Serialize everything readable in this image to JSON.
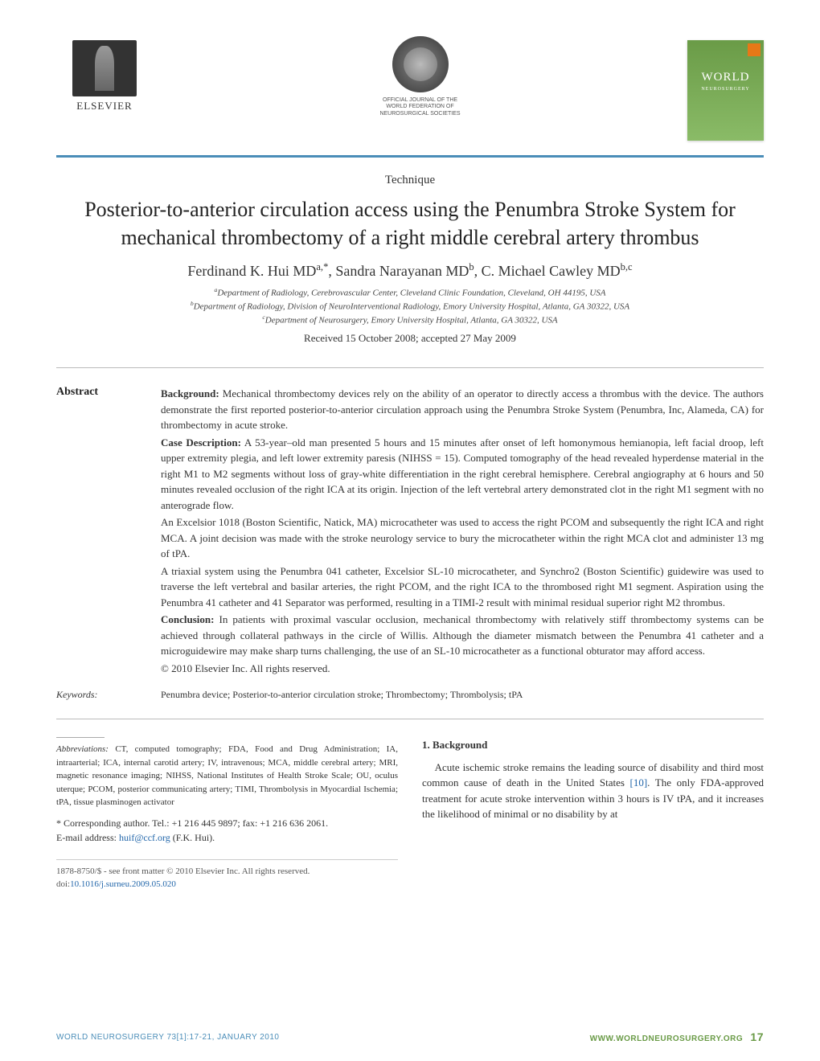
{
  "header": {
    "publisher_name": "ELSEVIER",
    "federation_caption": "OFFICIAL JOURNAL OF THE\nWORLD FEDERATION OF\nNEUROSURGICAL SOCIETIES",
    "journal_cover_title": "WORLD",
    "journal_cover_sub": "NEUROSURGERY"
  },
  "article": {
    "type": "Technique",
    "title": "Posterior-to-anterior circulation access using the Penumbra Stroke System for mechanical thrombectomy of a right middle cerebral artery thrombus",
    "authors_html": "Ferdinand K. Hui MD<sup>a,*</sup>, Sandra Narayanan MD<sup>b</sup>, C. Michael Cawley MD<sup>b,c</sup>",
    "affiliations": {
      "a": "Department of Radiology, Cerebrovascular Center, Cleveland Clinic Foundation, Cleveland, OH 44195, USA",
      "b": "Department of Radiology, Division of NeuroInterventional Radiology, Emory University Hospital, Atlanta, GA 30322, USA",
      "c": "Department of Neurosurgery, Emory University Hospital, Atlanta, GA 30322, USA"
    },
    "dates": "Received 15 October 2008; accepted 27 May 2009"
  },
  "abstract": {
    "label": "Abstract",
    "background_head": "Background:",
    "background": "Mechanical thrombectomy devices rely on the ability of an operator to directly access a thrombus with the device. The authors demonstrate the first reported posterior-to-anterior circulation approach using the Penumbra Stroke System (Penumbra, Inc, Alameda, CA) for thrombectomy in acute stroke.",
    "case_head": "Case Description:",
    "case_p1": "A 53-year–old man presented 5 hours and 15 minutes after onset of left homonymous hemianopia, left facial droop, left upper extremity plegia, and left lower extremity paresis (NIHSS = 15). Computed tomography of the head revealed hyperdense material in the right M1 to M2 segments without loss of gray-white differentiation in the right cerebral hemisphere. Cerebral angiography at 6 hours and 50 minutes revealed occlusion of the right ICA at its origin. Injection of the left vertebral artery demonstrated clot in the right M1 segment with no anterograde flow.",
    "case_p2": "An Excelsior 1018 (Boston Scientific, Natick, MA) microcatheter was used to access the right PCOM and subsequently the right ICA and right MCA. A joint decision was made with the stroke neurology service to bury the microcatheter within the right MCA clot and administer 13 mg of tPA.",
    "case_p3": "A triaxial system using the Penumbra 041 catheter, Excelsior SL-10 microcatheter, and Synchro2 (Boston Scientific) guidewire was used to traverse the left vertebral and basilar arteries, the right PCOM, and the right ICA to the thrombosed right M1 segment. Aspiration using the Penumbra 41 catheter and 41 Separator was performed, resulting in a TIMI-2 result with minimal residual superior right M2 thrombus.",
    "conclusion_head": "Conclusion:",
    "conclusion": "In patients with proximal vascular occlusion, mechanical thrombectomy with relatively stiff thrombectomy systems can be achieved through collateral pathways in the circle of Willis. Although the diameter mismatch between the Penumbra 41 catheter and a microguidewire may make sharp turns challenging, the use of an SL-10 microcatheter as a functional obturator may afford access.",
    "copyright": "© 2010 Elsevier Inc. All rights reserved."
  },
  "keywords": {
    "label": "Keywords:",
    "body": "Penumbra device; Posterior-to-anterior circulation stroke; Thrombectomy; Thrombolysis; tPA"
  },
  "abbrev": {
    "label": "Abbreviations:",
    "body": "CT, computed tomography; FDA, Food and Drug Administration; IA, intraarterial; ICA, internal carotid artery; IV, intravenous; MCA, middle cerebral artery; MRI, magnetic resonance imaging; NIHSS, National Institutes of Health Stroke Scale; OU, oculus uterque; PCOM, posterior communicating artery; TIMI, Thrombolysis in Myocardial Ischemia; tPA, tissue plasminogen activator"
  },
  "corresponding": {
    "line1": "* Corresponding author. Tel.: +1 216 445 9897; fax: +1 216 636 2061.",
    "email_label": "E-mail address:",
    "email": "huif@ccf.org",
    "email_after": "(F.K. Hui)."
  },
  "background_section": {
    "head": "1. Background",
    "para": "Acute ischemic stroke remains the leading source of disability and third most common cause of death in the United States [10]. The only FDA-approved treatment for acute stroke intervention within 3 hours is IV tPA, and it increases the likelihood of minimal or no disability by at",
    "cite": "[10]"
  },
  "footer_info": {
    "line": "1878-8750/$ - see front matter © 2010 Elsevier Inc. All rights reserved.",
    "doi_prefix": "doi:",
    "doi": "10.1016/j.surneu.2009.05.020"
  },
  "page_footer": {
    "left": "WORLD NEUROSURGERY 73[1]:17-21, JANUARY 2010",
    "right": "WWW.WORLDNEUROSURGERY.ORG",
    "page": "17"
  },
  "colors": {
    "rule_blue": "#4a8db8",
    "link_blue": "#2266aa",
    "cover_green": "#6a9b47",
    "text": "#333333"
  }
}
